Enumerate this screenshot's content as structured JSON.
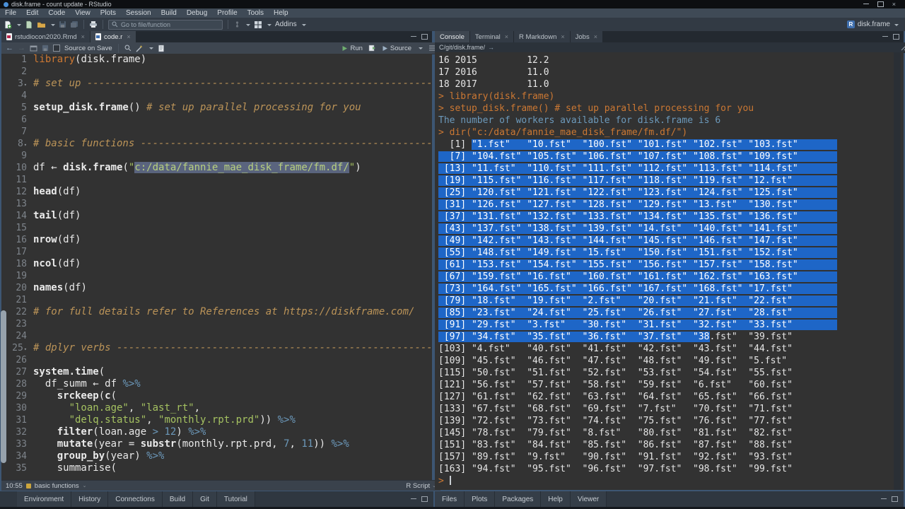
{
  "window": {
    "title": "disk.frame - count update - RStudio",
    "project": "disk.frame"
  },
  "menubar": {
    "items": [
      "File",
      "Edit",
      "Code",
      "View",
      "Plots",
      "Session",
      "Build",
      "Debug",
      "Profile",
      "Tools",
      "Help"
    ]
  },
  "toolbar": {
    "goto_placeholder": "Go to file/function",
    "addins_label": "Addins"
  },
  "editor": {
    "tabs": [
      {
        "label": "rstudiocon2020.Rmd",
        "icon": "rmd",
        "active": false,
        "closable": true
      },
      {
        "label": "code.r",
        "icon": "r",
        "active": true,
        "closable": true
      }
    ],
    "toolbar": {
      "source_on_save_label": "Source on Save",
      "run_label": "Run",
      "source_label": "Source"
    },
    "status": {
      "position": "10:55",
      "section": "basic functions",
      "file_type": "R Script"
    },
    "lines": [
      {
        "n": 1,
        "seg": [
          {
            "s": "kw",
            "t": "library"
          },
          {
            "s": "pl",
            "t": "(disk.frame)"
          }
        ]
      },
      {
        "n": 2,
        "seg": []
      },
      {
        "n": 3,
        "fold": true,
        "seg": [
          {
            "s": "com",
            "t": "# set up -------------------------------------------------------------------"
          }
        ]
      },
      {
        "n": 4,
        "seg": []
      },
      {
        "n": 5,
        "seg": [
          {
            "s": "fn",
            "t": "setup_disk.frame"
          },
          {
            "s": "pl",
            "t": "() "
          },
          {
            "s": "com",
            "t": "# set up parallel processing for you"
          }
        ]
      },
      {
        "n": 6,
        "seg": []
      },
      {
        "n": 7,
        "seg": []
      },
      {
        "n": 8,
        "fold": true,
        "seg": [
          {
            "s": "com",
            "t": "# basic functions ----------------------------------------------------------"
          }
        ]
      },
      {
        "n": 9,
        "seg": []
      },
      {
        "n": 10,
        "seg": [
          {
            "s": "pl",
            "t": "df ← "
          },
          {
            "s": "fn",
            "t": "disk.frame"
          },
          {
            "s": "pl",
            "t": "("
          },
          {
            "s": "str",
            "t": "\""
          },
          {
            "s": "strsel",
            "t": "c:/data/fannie_mae_disk_frame/fm.df/"
          },
          {
            "s": "str",
            "t": "\""
          },
          {
            "s": "pl",
            "t": ")"
          }
        ]
      },
      {
        "n": 11,
        "seg": []
      },
      {
        "n": 12,
        "seg": [
          {
            "s": "fn",
            "t": "head"
          },
          {
            "s": "pl",
            "t": "(df)"
          }
        ]
      },
      {
        "n": 13,
        "seg": []
      },
      {
        "n": 14,
        "seg": [
          {
            "s": "fn",
            "t": "tail"
          },
          {
            "s": "pl",
            "t": "(df)"
          }
        ]
      },
      {
        "n": 15,
        "seg": []
      },
      {
        "n": 16,
        "seg": [
          {
            "s": "fn",
            "t": "nrow"
          },
          {
            "s": "pl",
            "t": "(df)"
          }
        ]
      },
      {
        "n": 17,
        "seg": []
      },
      {
        "n": 18,
        "seg": [
          {
            "s": "fn",
            "t": "ncol"
          },
          {
            "s": "pl",
            "t": "(df)"
          }
        ]
      },
      {
        "n": 19,
        "seg": []
      },
      {
        "n": 20,
        "seg": [
          {
            "s": "fn",
            "t": "names"
          },
          {
            "s": "pl",
            "t": "(df)"
          }
        ]
      },
      {
        "n": 21,
        "seg": []
      },
      {
        "n": 22,
        "seg": [
          {
            "s": "com",
            "t": "# for full details refer to References at https://diskframe.com/"
          }
        ]
      },
      {
        "n": 23,
        "seg": []
      },
      {
        "n": 24,
        "seg": []
      },
      {
        "n": 25,
        "fold": true,
        "seg": [
          {
            "s": "com",
            "t": "# dplyr verbs --------------------------------------------------------------"
          }
        ]
      },
      {
        "n": 26,
        "seg": []
      },
      {
        "n": 27,
        "seg": [
          {
            "s": "fn",
            "t": "system.time"
          },
          {
            "s": "pl",
            "t": "("
          }
        ]
      },
      {
        "n": 28,
        "seg": [
          {
            "s": "pl",
            "t": "  df_summ ← df "
          },
          {
            "s": "op",
            "t": "%>%"
          }
        ]
      },
      {
        "n": 29,
        "seg": [
          {
            "s": "pl",
            "t": "    "
          },
          {
            "s": "fn",
            "t": "srckeep"
          },
          {
            "s": "pl",
            "t": "("
          },
          {
            "s": "fn",
            "t": "c"
          },
          {
            "s": "pl",
            "t": "("
          }
        ]
      },
      {
        "n": 30,
        "seg": [
          {
            "s": "pl",
            "t": "      "
          },
          {
            "s": "str",
            "t": "\"loan.age\""
          },
          {
            "s": "pl",
            "t": ", "
          },
          {
            "s": "str",
            "t": "\"last_rt\""
          },
          {
            "s": "pl",
            "t": ","
          }
        ]
      },
      {
        "n": 31,
        "seg": [
          {
            "s": "pl",
            "t": "      "
          },
          {
            "s": "str",
            "t": "\"delq.status\""
          },
          {
            "s": "pl",
            "t": ", "
          },
          {
            "s": "str",
            "t": "\"monthly.rpt.prd\""
          },
          {
            "s": "pl",
            "t": ")) "
          },
          {
            "s": "op",
            "t": "%>%"
          }
        ]
      },
      {
        "n": 32,
        "seg": [
          {
            "s": "pl",
            "t": "    "
          },
          {
            "s": "fn",
            "t": "filter"
          },
          {
            "s": "pl",
            "t": "(loan.age "
          },
          {
            "s": "op",
            "t": ">"
          },
          {
            "s": "pl",
            "t": " "
          },
          {
            "s": "num",
            "t": "12"
          },
          {
            "s": "pl",
            "t": ") "
          },
          {
            "s": "op",
            "t": "%>%"
          }
        ]
      },
      {
        "n": 33,
        "seg": [
          {
            "s": "pl",
            "t": "    "
          },
          {
            "s": "fn",
            "t": "mutate"
          },
          {
            "s": "pl",
            "t": "(year = "
          },
          {
            "s": "fn",
            "t": "substr"
          },
          {
            "s": "pl",
            "t": "(monthly.rpt.prd, "
          },
          {
            "s": "num",
            "t": "7"
          },
          {
            "s": "pl",
            "t": ", "
          },
          {
            "s": "num",
            "t": "11"
          },
          {
            "s": "pl",
            "t": ")) "
          },
          {
            "s": "op",
            "t": "%>%"
          }
        ]
      },
      {
        "n": 34,
        "seg": [
          {
            "s": "pl",
            "t": "    "
          },
          {
            "s": "fn",
            "t": "group_by"
          },
          {
            "s": "pl",
            "t": "(year) "
          },
          {
            "s": "op",
            "t": "%>%"
          }
        ]
      },
      {
        "n": 35,
        "seg": [
          {
            "s": "pl",
            "t": "    summarise("
          }
        ]
      }
    ]
  },
  "console": {
    "tabs": [
      {
        "label": "Console",
        "active": true,
        "closable": false
      },
      {
        "label": "Terminal",
        "active": false,
        "closable": true
      },
      {
        "label": "R Markdown",
        "active": false,
        "closable": true
      },
      {
        "label": "Jobs",
        "active": false,
        "closable": true
      }
    ],
    "path": "C/git/disk.frame/",
    "lines": [
      {
        "seg": [
          {
            "s": "p",
            "t": "16 2015         12.2"
          }
        ]
      },
      {
        "seg": [
          {
            "s": "p",
            "t": "17 2016         11.0"
          }
        ]
      },
      {
        "seg": [
          {
            "s": "p",
            "t": "18 2017         11.0"
          }
        ]
      },
      {
        "seg": [
          {
            "s": "i",
            "t": "> library(disk.frame)"
          }
        ]
      },
      {
        "seg": [
          {
            "s": "i",
            "t": "> setup_disk.frame() # set up parallel processing for you"
          }
        ]
      },
      {
        "seg": [
          {
            "s": "m",
            "t": "The number of workers available for disk.frame is 6"
          }
        ]
      },
      {
        "seg": [
          {
            "s": "i",
            "t": "> dir(\"c:/data/fannie_mae_disk_frame/fm.df/\")"
          }
        ]
      },
      {
        "pad": true,
        "seg": [
          {
            "s": "p",
            "t": "  [1] "
          },
          {
            "s": "s",
            "t": "\"1.fst\"   \"10.fst\"  \"100.fst\" \"101.fst\" \"102.fst\" \"103.fst\""
          }
        ]
      },
      {
        "pad": true,
        "seg": [
          {
            "s": "s",
            "t": "  [7] \"104.fst\" \"105.fst\" \"106.fst\" \"107.fst\" \"108.fst\" \"109.fst\""
          }
        ]
      },
      {
        "pad": true,
        "seg": [
          {
            "s": "s",
            "t": " [13] \"11.fst\"  \"110.fst\" \"111.fst\" \"112.fst\" \"113.fst\" \"114.fst\""
          }
        ]
      },
      {
        "pad": true,
        "seg": [
          {
            "s": "s",
            "t": " [19] \"115.fst\" \"116.fst\" \"117.fst\" \"118.fst\" \"119.fst\" \"12.fst\""
          }
        ]
      },
      {
        "pad": true,
        "seg": [
          {
            "s": "s",
            "t": " [25] \"120.fst\" \"121.fst\" \"122.fst\" \"123.fst\" \"124.fst\" \"125.fst\""
          }
        ]
      },
      {
        "pad": true,
        "seg": [
          {
            "s": "s",
            "t": " [31] \"126.fst\" \"127.fst\" \"128.fst\" \"129.fst\" \"13.fst\"  \"130.fst\""
          }
        ]
      },
      {
        "pad": true,
        "seg": [
          {
            "s": "s",
            "t": " [37] \"131.fst\" \"132.fst\" \"133.fst\" \"134.fst\" \"135.fst\" \"136.fst\""
          }
        ]
      },
      {
        "pad": true,
        "seg": [
          {
            "s": "s",
            "t": " [43] \"137.fst\" \"138.fst\" \"139.fst\" \"14.fst\"  \"140.fst\" \"141.fst\""
          }
        ]
      },
      {
        "pad": true,
        "seg": [
          {
            "s": "s",
            "t": " [49] \"142.fst\" \"143.fst\" \"144.fst\" \"145.fst\" \"146.fst\" \"147.fst\""
          }
        ]
      },
      {
        "pad": true,
        "seg": [
          {
            "s": "s",
            "t": " [55] \"148.fst\" \"149.fst\" \"15.fst\"  \"150.fst\" \"151.fst\" \"152.fst\""
          }
        ]
      },
      {
        "pad": true,
        "seg": [
          {
            "s": "s",
            "t": " [61] \"153.fst\" \"154.fst\" \"155.fst\" \"156.fst\" \"157.fst\" \"158.fst\""
          }
        ]
      },
      {
        "pad": true,
        "seg": [
          {
            "s": "s",
            "t": " [67] \"159.fst\" \"16.fst\"  \"160.fst\" \"161.fst\" \"162.fst\" \"163.fst\""
          }
        ]
      },
      {
        "pad": true,
        "seg": [
          {
            "s": "s",
            "t": " [73] \"164.fst\" \"165.fst\" \"166.fst\" \"167.fst\" \"168.fst\" \"17.fst\""
          }
        ]
      },
      {
        "pad": true,
        "seg": [
          {
            "s": "s",
            "t": " [79] \"18.fst\"  \"19.fst\"  \"2.fst\"   \"20.fst\"  \"21.fst\"  \"22.fst\""
          }
        ]
      },
      {
        "pad": true,
        "seg": [
          {
            "s": "s",
            "t": " [85] \"23.fst\"  \"24.fst\"  \"25.fst\"  \"26.fst\"  \"27.fst\"  \"28.fst\""
          }
        ]
      },
      {
        "pad": true,
        "seg": [
          {
            "s": "s",
            "t": " [91] \"29.fst\"  \"3.fst\"   \"30.fst\"  \"31.fst\"  \"32.fst\"  \"33.fst\""
          }
        ]
      },
      {
        "seg": [
          {
            "s": "s",
            "t": " [97] \"34.fst\"  \"35.fst\"  \"36.fst\"  \"37.fst\"  \"38"
          },
          {
            "s": "p",
            "t": ".fst\"  \"39.fst\""
          }
        ]
      },
      {
        "seg": [
          {
            "s": "p",
            "t": "[103] \"4.fst\"   \"40.fst\"  \"41.fst\"  \"42.fst\"  \"43.fst\"  \"44.fst\""
          }
        ]
      },
      {
        "seg": [
          {
            "s": "p",
            "t": "[109] \"45.fst\"  \"46.fst\"  \"47.fst\"  \"48.fst\"  \"49.fst\"  \"5.fst\""
          }
        ]
      },
      {
        "seg": [
          {
            "s": "p",
            "t": "[115] \"50.fst\"  \"51.fst\"  \"52.fst\"  \"53.fst\"  \"54.fst\"  \"55.fst\""
          }
        ]
      },
      {
        "seg": [
          {
            "s": "p",
            "t": "[121] \"56.fst\"  \"57.fst\"  \"58.fst\"  \"59.fst\"  \"6.fst\"   \"60.fst\""
          }
        ]
      },
      {
        "seg": [
          {
            "s": "p",
            "t": "[127] \"61.fst\"  \"62.fst\"  \"63.fst\"  \"64.fst\"  \"65.fst\"  \"66.fst\""
          }
        ]
      },
      {
        "seg": [
          {
            "s": "p",
            "t": "[133] \"67.fst\"  \"68.fst\"  \"69.fst\"  \"7.fst\"   \"70.fst\"  \"71.fst\""
          }
        ]
      },
      {
        "seg": [
          {
            "s": "p",
            "t": "[139] \"72.fst\"  \"73.fst\"  \"74.fst\"  \"75.fst\"  \"76.fst\"  \"77.fst\""
          }
        ]
      },
      {
        "seg": [
          {
            "s": "p",
            "t": "[145] \"78.fst\"  \"79.fst\"  \"8.fst\"   \"80.fst\"  \"81.fst\"  \"82.fst\""
          }
        ]
      },
      {
        "seg": [
          {
            "s": "p",
            "t": "[151] \"83.fst\"  \"84.fst\"  \"85.fst\"  \"86.fst\"  \"87.fst\"  \"88.fst\""
          }
        ]
      },
      {
        "seg": [
          {
            "s": "p",
            "t": "[157] \"89.fst\"  \"9.fst\"   \"90.fst\"  \"91.fst\"  \"92.fst\"  \"93.fst\""
          }
        ]
      },
      {
        "seg": [
          {
            "s": "p",
            "t": "[163] \"94.fst\"  \"95.fst\"  \"96.fst\"  \"97.fst\"  \"98.fst\"  \"99.fst\""
          }
        ]
      },
      {
        "cursor": true,
        "seg": [
          {
            "s": "i",
            "t": "> "
          }
        ]
      }
    ]
  },
  "bottom_left_tabs": [
    "Environment",
    "History",
    "Connections",
    "Build",
    "Git",
    "Tutorial"
  ],
  "bottom_right_tabs": [
    "Files",
    "Plots",
    "Packages",
    "Help",
    "Viewer"
  ],
  "colors": {
    "selection_blue": "#1e66c7",
    "editor_selection": "#5A647E",
    "keyword_orange": "#CC7833",
    "string_green": "#A5C261",
    "comment_tan": "#BC9458",
    "number_blue": "#6C99BB",
    "editor_bg": "#323232"
  }
}
